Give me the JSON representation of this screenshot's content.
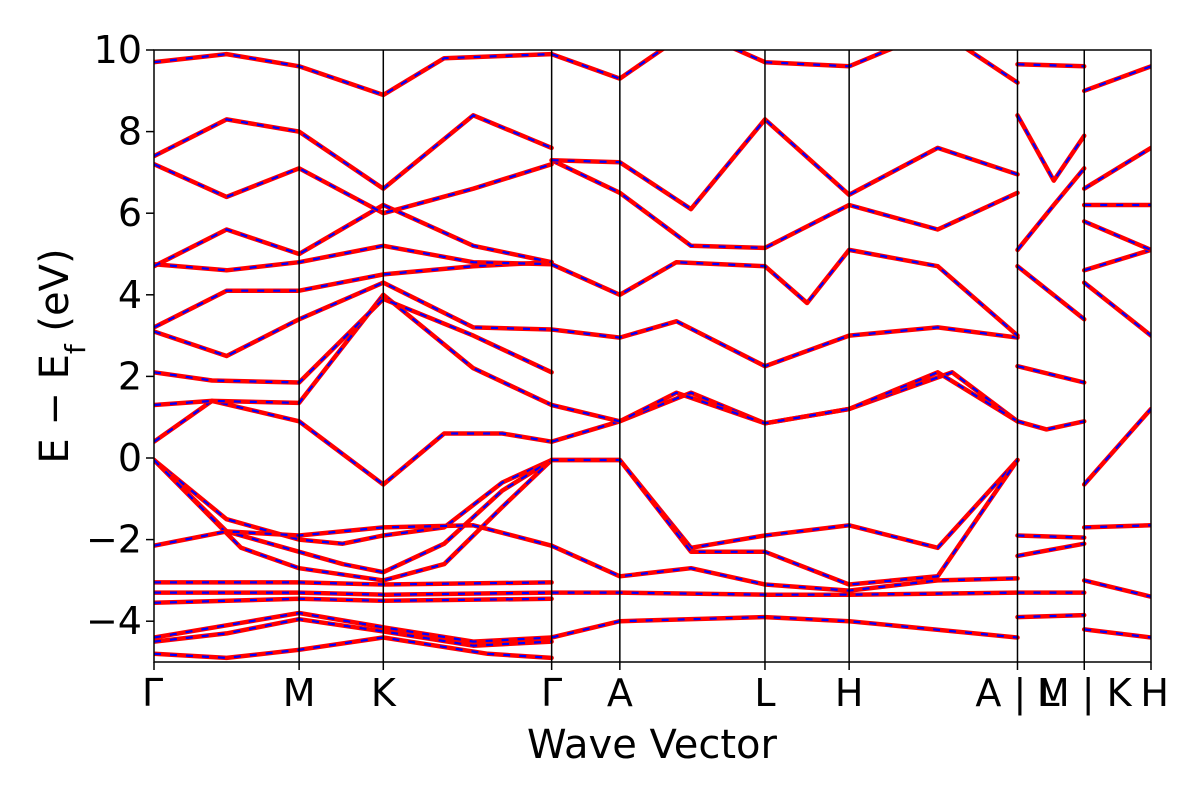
{
  "chart_data": {
    "type": "line",
    "xlabel": "Wave Vector",
    "ylabel_main": "E − E",
    "ylabel_sub": "f",
    "ylabel_unit": " (eV)",
    "ylim": [
      -5,
      10
    ],
    "yticks": [
      -4,
      -2,
      0,
      2,
      4,
      6,
      8,
      10
    ],
    "ytick_labels": [
      "−4",
      "−2",
      "0",
      "2",
      "4",
      "6",
      "8",
      "10"
    ],
    "kpath_positions": [
      0,
      1,
      1.58,
      2.74,
      3.21,
      4.21,
      4.79,
      5.95,
      6.41,
      6.87
    ],
    "kpath_labels": [
      {
        "label": "Γ",
        "x": 0
      },
      {
        "label": "M",
        "x": 1
      },
      {
        "label": "K",
        "x": 1.58
      },
      {
        "label": "Γ",
        "x": 2.74
      },
      {
        "label": "A",
        "x": 3.21
      },
      {
        "label": "L",
        "x": 4.21
      },
      {
        "label": "H",
        "x": 4.79
      },
      {
        "label": "A | L",
        "x": 5.95
      },
      {
        "label": "M | K",
        "x": 6.41
      },
      {
        "label": "H",
        "x": 6.87
      }
    ],
    "series_style": {
      "solid_color": "#ff0000",
      "dashed_color": "#0000ff"
    },
    "grid": false,
    "bands": [
      {
        "x": [
          0,
          0.5,
          1,
          1.3,
          1.58,
          2,
          2.4,
          2.74
        ],
        "y": [
          -0.05,
          -1.5,
          -2.0,
          -2.1,
          -1.9,
          -1.7,
          -0.6,
          -0.05
        ]
      },
      {
        "x": [
          0,
          0.5,
          1,
          1.3,
          1.58,
          2.0,
          2.4,
          2.74
        ],
        "y": [
          -0.05,
          -1.8,
          -2.3,
          -2.6,
          -2.8,
          -2.1,
          -0.8,
          -0.05
        ]
      },
      {
        "x": [
          0,
          0.6,
          1,
          1.58,
          2.0,
          2.4,
          2.74
        ],
        "y": [
          -0.05,
          -2.2,
          -2.7,
          -3.0,
          -2.6,
          -1.2,
          -0.05
        ]
      },
      {
        "x": [
          0,
          0.5,
          1,
          1.58,
          2.2,
          2.74
        ],
        "y": [
          -2.15,
          -1.8,
          -1.9,
          -1.7,
          -1.65,
          -2.15
        ]
      },
      {
        "x": [
          0,
          1,
          1.58,
          2.74
        ],
        "y": [
          -3.05,
          -3.05,
          -3.1,
          -3.05
        ]
      },
      {
        "x": [
          0,
          1,
          1.58,
          2.74
        ],
        "y": [
          -3.3,
          -3.3,
          -3.35,
          -3.3
        ]
      },
      {
        "x": [
          0,
          1,
          1.58,
          2.74
        ],
        "y": [
          -3.55,
          -3.45,
          -3.5,
          -3.45
        ]
      },
      {
        "x": [
          0,
          0.5,
          1,
          1.58,
          2.2,
          2.74
        ],
        "y": [
          -4.4,
          -4.1,
          -3.8,
          -4.15,
          -4.5,
          -4.4
        ]
      },
      {
        "x": [
          0,
          0.5,
          1,
          1.58,
          2.2,
          2.74
        ],
        "y": [
          -4.5,
          -4.3,
          -3.95,
          -4.25,
          -4.6,
          -4.5
        ]
      },
      {
        "x": [
          0,
          0.5,
          1,
          1.58,
          2.3,
          2.74
        ],
        "y": [
          -4.8,
          -4.9,
          -4.7,
          -4.4,
          -4.8,
          -4.9
        ]
      },
      {
        "x": [
          0,
          0.4,
          1,
          1.58,
          2.0,
          2.4,
          2.74
        ],
        "y": [
          0.4,
          1.4,
          0.9,
          -0.65,
          0.6,
          0.6,
          0.4
        ]
      },
      {
        "x": [
          0,
          0.4,
          1,
          1.58,
          2.2,
          2.74
        ],
        "y": [
          1.3,
          1.4,
          1.35,
          4.0,
          2.2,
          1.3
        ]
      },
      {
        "x": [
          0,
          0.4,
          1,
          1.58,
          2.2,
          2.74
        ],
        "y": [
          2.1,
          1.9,
          1.85,
          3.9,
          3.0,
          2.1
        ]
      },
      {
        "x": [
          0,
          0.5,
          1,
          1.58,
          2.2,
          2.74
        ],
        "y": [
          3.1,
          2.5,
          3.4,
          4.3,
          3.2,
          3.15
        ]
      },
      {
        "x": [
          0,
          0.5,
          1,
          1.58,
          2.2,
          2.74
        ],
        "y": [
          3.2,
          4.1,
          4.1,
          4.5,
          4.7,
          4.8
        ]
      },
      {
        "x": [
          0,
          0.5,
          1,
          1.58,
          2.2,
          2.74
        ],
        "y": [
          4.75,
          4.6,
          4.8,
          5.2,
          4.8,
          4.75
        ]
      },
      {
        "x": [
          0,
          0.5,
          1,
          1.58,
          2.2,
          2.74
        ],
        "y": [
          4.7,
          5.6,
          5.0,
          6.2,
          5.2,
          4.8
        ]
      },
      {
        "x": [
          0,
          0.5,
          1,
          1.58,
          2.2,
          2.74
        ],
        "y": [
          7.2,
          6.4,
          7.1,
          6.0,
          6.6,
          7.2
        ]
      },
      {
        "x": [
          0,
          0.5,
          1,
          1.58,
          2.2,
          2.74
        ],
        "y": [
          7.4,
          8.3,
          8.0,
          6.6,
          8.4,
          7.6
        ]
      },
      {
        "x": [
          0,
          0.5,
          1,
          1.58,
          2.0,
          2.74
        ],
        "y": [
          9.7,
          9.9,
          9.6,
          8.9,
          9.8,
          9.9
        ]
      },
      {
        "x": [
          2.74,
          3.21,
          3.7,
          4.21,
          4.79,
          5.4,
          5.95
        ],
        "y": [
          -0.05,
          -0.05,
          -2.2,
          -1.9,
          -1.65,
          -2.2,
          -0.05
        ]
      },
      {
        "x": [
          2.74,
          3.21,
          3.7,
          4.21,
          4.79,
          5.4,
          5.95
        ],
        "y": [
          -0.05,
          -0.05,
          -2.3,
          -2.3,
          -3.1,
          -2.9,
          -0.05
        ]
      },
      {
        "x": [
          2.74,
          3.21,
          3.7,
          4.21,
          4.79,
          5.4,
          5.95
        ],
        "y": [
          -2.15,
          -2.9,
          -2.7,
          -3.1,
          -3.25,
          -3.0,
          -2.95
        ]
      },
      {
        "x": [
          2.74,
          3.21,
          4.21,
          4.79,
          5.95
        ],
        "y": [
          -3.3,
          -3.3,
          -3.35,
          -3.35,
          -3.3
        ]
      },
      {
        "x": [
          2.74,
          3.21,
          4.21,
          4.79,
          5.95
        ],
        "y": [
          -4.4,
          -4.0,
          -3.9,
          -4.0,
          -4.4
        ]
      },
      {
        "x": [
          2.74,
          3.21,
          3.7,
          4.21,
          4.79,
          5.5,
          5.95
        ],
        "y": [
          0.4,
          0.9,
          1.6,
          0.85,
          1.2,
          2.1,
          0.9
        ]
      },
      {
        "x": [
          2.74,
          3.21,
          3.6,
          4.21,
          4.79,
          5.4,
          5.95
        ],
        "y": [
          1.3,
          0.9,
          1.6,
          0.85,
          1.2,
          2.1,
          0.9
        ]
      },
      {
        "x": [
          2.74,
          3.21,
          3.6,
          4.21,
          4.79,
          5.4,
          5.95
        ],
        "y": [
          3.15,
          2.95,
          3.35,
          2.25,
          3.0,
          3.2,
          2.95
        ]
      },
      {
        "x": [
          2.74,
          3.21,
          3.6,
          4.21,
          4.5,
          4.79,
          5.4,
          5.95
        ],
        "y": [
          4.75,
          4.0,
          4.8,
          4.7,
          3.8,
          5.1,
          4.7,
          3.0
        ]
      },
      {
        "x": [
          2.74,
          3.21,
          3.7,
          4.21,
          4.79,
          5.4,
          5.95
        ],
        "y": [
          7.3,
          6.5,
          5.2,
          5.15,
          6.2,
          5.6,
          6.5
        ]
      },
      {
        "x": [
          2.74,
          3.21,
          3.7,
          4.21,
          4.79,
          5.4,
          5.95
        ],
        "y": [
          7.3,
          7.25,
          6.1,
          8.3,
          6.45,
          7.6,
          6.95
        ]
      },
      {
        "x": [
          2.74,
          3.21,
          3.7,
          4.21,
          4.79,
          5.4,
          5.95
        ],
        "y": [
          9.9,
          9.3,
          10.5,
          9.7,
          9.6,
          10.5,
          9.2
        ]
      },
      {
        "x": [
          5.95,
          6.41
        ],
        "y": [
          -1.9,
          -1.95
        ]
      },
      {
        "x": [
          5.95,
          6.41
        ],
        "y": [
          -2.4,
          -2.1
        ]
      },
      {
        "x": [
          5.95,
          6.41
        ],
        "y": [
          -3.3,
          -3.3
        ]
      },
      {
        "x": [
          5.95,
          6.41
        ],
        "y": [
          -3.9,
          -3.85
        ]
      },
      {
        "x": [
          5.95,
          6.15,
          6.41
        ],
        "y": [
          0.9,
          0.7,
          0.9
        ]
      },
      {
        "x": [
          5.95,
          6.41
        ],
        "y": [
          2.25,
          1.85
        ]
      },
      {
        "x": [
          5.95,
          6.41
        ],
        "y": [
          4.7,
          3.4
        ]
      },
      {
        "x": [
          5.95,
          6.2,
          6.41
        ],
        "y": [
          5.1,
          6.2,
          7.1
        ]
      },
      {
        "x": [
          5.95,
          6.2,
          6.41
        ],
        "y": [
          8.4,
          6.8,
          7.9
        ]
      },
      {
        "x": [
          5.95,
          6.41
        ],
        "y": [
          9.65,
          9.6
        ]
      },
      {
        "x": [
          6.41,
          6.87
        ],
        "y": [
          -0.65,
          1.2
        ]
      },
      {
        "x": [
          6.41,
          6.87
        ],
        "y": [
          -1.7,
          -1.65
        ]
      },
      {
        "x": [
          6.41,
          6.87
        ],
        "y": [
          -3.0,
          -3.4
        ]
      },
      {
        "x": [
          6.41,
          6.87
        ],
        "y": [
          -4.2,
          -4.4
        ]
      },
      {
        "x": [
          6.41,
          6.87
        ],
        "y": [
          4.3,
          3.0
        ]
      },
      {
        "x": [
          6.41,
          6.87
        ],
        "y": [
          4.6,
          5.1
        ]
      },
      {
        "x": [
          6.41,
          6.87
        ],
        "y": [
          5.8,
          5.1
        ]
      },
      {
        "x": [
          6.41,
          6.87
        ],
        "y": [
          6.2,
          6.2
        ]
      },
      {
        "x": [
          6.41,
          6.87
        ],
        "y": [
          6.6,
          7.6
        ]
      },
      {
        "x": [
          6.41,
          6.87
        ],
        "y": [
          9.0,
          9.6
        ]
      }
    ]
  }
}
